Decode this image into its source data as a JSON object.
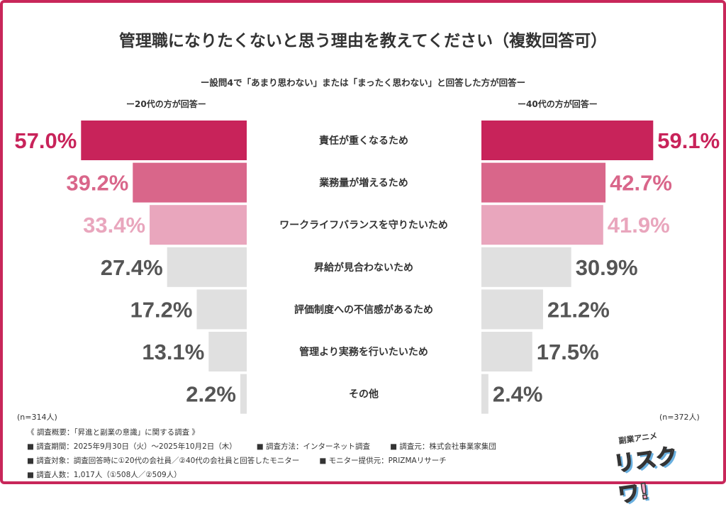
{
  "chart_data": {
    "type": "bar",
    "title": "管理職になりたくないと思う理由を教えてください（複数回答可）",
    "subtitle": "ー設問4で「あまり思わない」または「まったく思わない」と回答した方が回答ー",
    "categories": [
      "責任が重くなるため",
      "業務量が増えるため",
      "ワークライフバランスを守りたいため",
      "昇給が見合わないため",
      "評価制度への不信感があるため",
      "管理より実務を行いたいため",
      "その他"
    ],
    "series": [
      {
        "name": "ー20代の方が回答ー",
        "n": "(n=314人)",
        "values": [
          57.0,
          39.2,
          33.4,
          27.4,
          17.2,
          13.1,
          2.2
        ],
        "labels": [
          "57.0%",
          "39.2%",
          "33.4%",
          "27.4%",
          "17.2%",
          "13.1%",
          "2.2%"
        ]
      },
      {
        "name": "ー40代の方が回答ー",
        "n": "(n=372人)",
        "values": [
          59.1,
          42.7,
          41.9,
          30.9,
          21.2,
          17.5,
          2.4
        ],
        "labels": [
          "59.1%",
          "42.7%",
          "41.9%",
          "30.9%",
          "21.2%",
          "17.5%",
          "2.4%"
        ]
      }
    ],
    "unit": "%",
    "colors": {
      "rank1": "#c8235a",
      "rank2": "#d9668a",
      "rank3": "#e9a6bd",
      "other": "#e0e0e0",
      "other_text": "#555555",
      "frame": "#c8275a"
    }
  },
  "notes": {
    "heading": "《 調査概要：「昇進と副業の意識」に関する調査 》",
    "period": "■ 調査期間：2025年9月30日（火）～2025年10月2日（木）",
    "method": "■ 調査方法：インターネット調査",
    "source": "■ 調査元：株式会社事業家集団",
    "target": "■ 調査対象：調査回答時に①20代の会社員／②40代の会社員と回答したモニター",
    "provider": "■ モニター提供元：PRIZMAリサーチ",
    "count": "■ 調査人数：1,017人（①508人／②509人）"
  },
  "logo": {
    "top": "副業アニメ",
    "main": "リスクワ"
  }
}
